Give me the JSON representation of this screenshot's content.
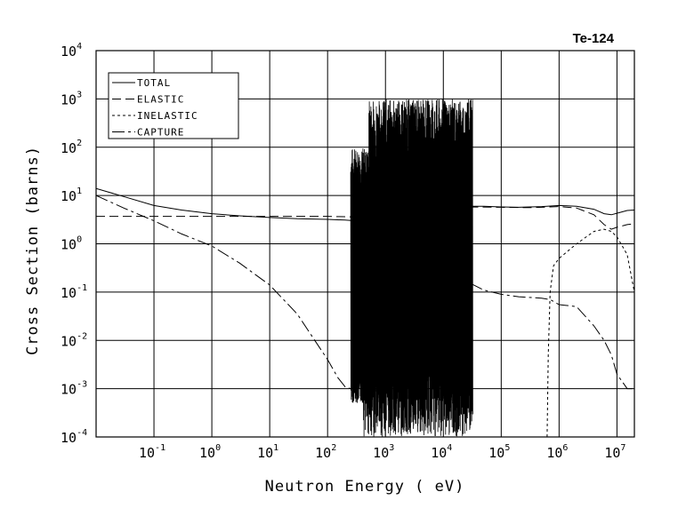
{
  "chart_data": {
    "type": "line",
    "title": "Te-124",
    "xlabel": "Neutron Energy ( eV)",
    "ylabel": "Cross Section (barns)",
    "xscale": "log",
    "yscale": "log",
    "xlim": [
      0.01,
      20000000
    ],
    "ylim": [
      0.0001,
      10000
    ],
    "grid": true,
    "legend_position": "top-left",
    "x_ticks": [
      {
        "value": 0.1,
        "base": "10",
        "exp": "-1"
      },
      {
        "value": 1,
        "base": "10",
        "exp": "0"
      },
      {
        "value": 10,
        "base": "10",
        "exp": "1"
      },
      {
        "value": 100,
        "base": "10",
        "exp": "2"
      },
      {
        "value": 1000,
        "base": "10",
        "exp": "3"
      },
      {
        "value": 10000,
        "base": "10",
        "exp": "4"
      },
      {
        "value": 100000,
        "base": "10",
        "exp": "5"
      },
      {
        "value": 1000000,
        "base": "10",
        "exp": "6"
      },
      {
        "value": 10000000,
        "base": "10",
        "exp": "7"
      }
    ],
    "y_ticks": [
      {
        "value": 0.0001,
        "base": "10",
        "exp": "-4"
      },
      {
        "value": 0.001,
        "base": "10",
        "exp": "-3"
      },
      {
        "value": 0.01,
        "base": "10",
        "exp": "-2"
      },
      {
        "value": 0.1,
        "base": "10",
        "exp": "-1"
      },
      {
        "value": 1,
        "base": "10",
        "exp": "0"
      },
      {
        "value": 10,
        "base": "10",
        "exp": "1"
      },
      {
        "value": 100,
        "base": "10",
        "exp": "2"
      },
      {
        "value": 1000,
        "base": "10",
        "exp": "3"
      },
      {
        "value": 10000,
        "base": "10",
        "exp": "4"
      }
    ],
    "series": [
      {
        "name": "TOTAL",
        "dash": "",
        "x": [
          0.01,
          0.03,
          0.1,
          0.3,
          1,
          3,
          10,
          30,
          100,
          200,
          300,
          400,
          30000,
          50000,
          100000,
          200000,
          500000,
          1000000,
          2000000,
          4000000,
          6000000,
          8000000,
          10000000,
          15000000,
          20000000
        ],
        "y": [
          14,
          9.5,
          6.2,
          5,
          4.2,
          3.8,
          3.5,
          3.3,
          3.2,
          3.1,
          3.0,
          3.2,
          6.0,
          6.0,
          5.8,
          5.7,
          5.9,
          6.2,
          6.0,
          5.2,
          4.2,
          4.0,
          4.3,
          4.9,
          5.0
        ]
      },
      {
        "name": "ELASTIC",
        "dash": "10,5",
        "x": [
          0.01,
          1,
          10,
          100,
          300,
          400,
          30000,
          100000,
          300000,
          500000,
          1000000,
          2000000,
          4000000,
          6000000,
          8000000,
          10000000,
          15000000,
          20000000
        ],
        "y": [
          3.7,
          3.7,
          3.7,
          3.7,
          3.6,
          3.8,
          5.8,
          5.7,
          5.6,
          5.7,
          5.9,
          5.5,
          4.0,
          2.5,
          2.0,
          2.2,
          2.5,
          2.6
        ]
      },
      {
        "name": "INELASTIC",
        "dash": "3,3",
        "x": [
          620000,
          650000,
          700000,
          800000,
          1000000,
          2000000,
          4000000,
          6000000,
          8000000,
          10000000,
          15000000,
          20000000
        ],
        "y": [
          0.0001,
          0.005,
          0.1,
          0.35,
          0.5,
          1.0,
          1.8,
          2.0,
          1.8,
          1.4,
          0.6,
          0.1
        ]
      },
      {
        "name": "CAPTURE",
        "dash": "14,4,3,4",
        "x": [
          0.01,
          0.03,
          0.1,
          0.3,
          1,
          3,
          10,
          30,
          60,
          100,
          150,
          200,
          250,
          300,
          30000,
          50000,
          100000,
          200000,
          500000,
          700000,
          1000000,
          2000000,
          4000000,
          6000000,
          8000000,
          10000000,
          15000000,
          20000000
        ],
        "y": [
          10,
          5.5,
          3.0,
          1.6,
          0.9,
          0.4,
          0.14,
          0.035,
          0.01,
          0.004,
          0.0017,
          0.0011,
          0.001,
          0.0011,
          0.15,
          0.11,
          0.09,
          0.08,
          0.075,
          0.07,
          0.055,
          0.05,
          0.02,
          0.01,
          0.005,
          0.002,
          0.001,
          0.001
        ]
      }
    ],
    "resonance_region": {
      "x_start": 250,
      "x_end": 32000,
      "y_peak_max": 1000,
      "y_min": 0.0001
    }
  }
}
